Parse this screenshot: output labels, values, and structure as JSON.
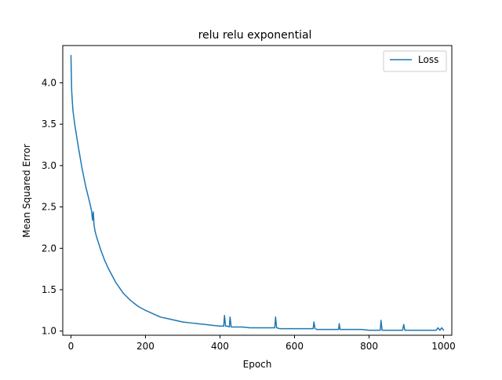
{
  "chart_data": {
    "type": "line",
    "title": "relu relu exponential",
    "xlabel": "Epoch",
    "ylabel": "Mean Squared Error",
    "xlim": [
      -22,
      1022
    ],
    "ylim": [
      0.95,
      4.45
    ],
    "xticks": [
      0,
      200,
      400,
      600,
      800,
      1000
    ],
    "yticks": [
      1.0,
      1.5,
      2.0,
      2.5,
      3.0,
      3.5,
      4.0
    ],
    "xtick_labels": [
      "0",
      "200",
      "400",
      "600",
      "800",
      "1000"
    ],
    "ytick_labels": [
      "1.0",
      "1.5",
      "2.0",
      "2.5",
      "3.0",
      "3.5",
      "4.0"
    ],
    "grid": false,
    "legend_position": "top-right",
    "series": [
      {
        "name": "Loss",
        "color": "#1f77b4",
        "x": [
          0,
          2,
          5,
          10,
          20,
          30,
          40,
          50,
          55,
          58,
          60,
          62,
          65,
          70,
          80,
          90,
          100,
          120,
          140,
          160,
          180,
          200,
          220,
          240,
          260,
          280,
          300,
          320,
          340,
          360,
          380,
          400,
          410,
          412,
          415,
          420,
          425,
          427,
          430,
          440,
          460,
          480,
          500,
          520,
          540,
          547,
          549,
          552,
          560,
          580,
          600,
          620,
          640,
          650,
          652,
          655,
          660,
          680,
          700,
          718,
          720,
          722,
          740,
          760,
          780,
          800,
          820,
          830,
          832,
          835,
          840,
          860,
          880,
          890,
          893,
          896,
          900,
          920,
          940,
          960,
          980,
          985,
          990,
          995,
          1000
        ],
        "y": [
          4.33,
          3.9,
          3.68,
          3.5,
          3.22,
          2.96,
          2.74,
          2.56,
          2.46,
          2.34,
          2.44,
          2.28,
          2.2,
          2.12,
          1.98,
          1.86,
          1.76,
          1.59,
          1.46,
          1.37,
          1.3,
          1.25,
          1.21,
          1.17,
          1.15,
          1.13,
          1.11,
          1.1,
          1.09,
          1.08,
          1.07,
          1.06,
          1.06,
          1.19,
          1.06,
          1.06,
          1.05,
          1.17,
          1.05,
          1.05,
          1.05,
          1.04,
          1.04,
          1.04,
          1.04,
          1.04,
          1.17,
          1.04,
          1.03,
          1.03,
          1.03,
          1.03,
          1.03,
          1.03,
          1.11,
          1.03,
          1.02,
          1.02,
          1.02,
          1.02,
          1.09,
          1.02,
          1.02,
          1.02,
          1.02,
          1.01,
          1.01,
          1.01,
          1.13,
          1.01,
          1.01,
          1.01,
          1.01,
          1.01,
          1.08,
          1.01,
          1.01,
          1.01,
          1.01,
          1.01,
          1.01,
          1.04,
          1.01,
          1.04,
          1.01
        ]
      }
    ]
  }
}
